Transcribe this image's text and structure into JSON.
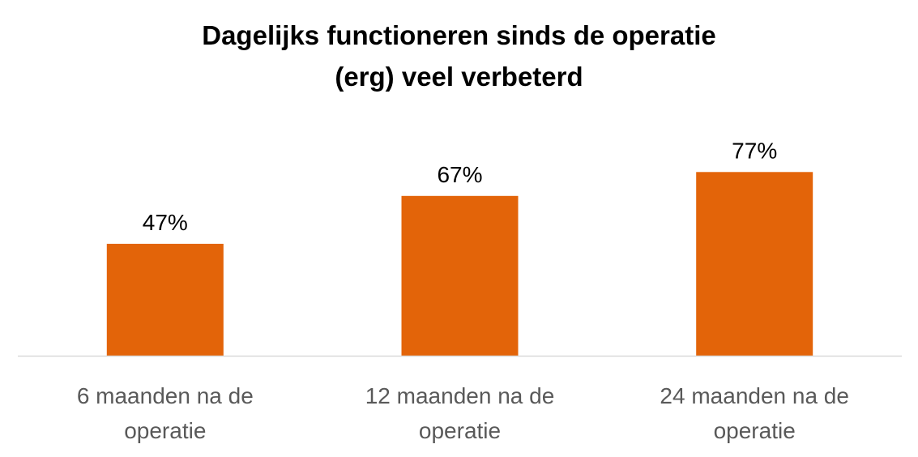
{
  "chart_data": {
    "type": "bar",
    "title": "Dagelijks functioneren sinds de operatie (erg) veel verbeterd",
    "title_lines": [
      "Dagelijks functioneren sinds de operatie",
      "(erg) veel verbeterd"
    ],
    "categories": [
      "6 maanden na de operatie",
      "12 maanden na de operatie",
      "24 maanden na de operatie"
    ],
    "category_lines": [
      [
        "6 maanden na de",
        "operatie"
      ],
      [
        "12 maanden na de",
        "operatie"
      ],
      [
        "24 maanden na de",
        "operatie"
      ]
    ],
    "values": [
      47,
      67,
      77
    ],
    "value_labels": [
      "47%",
      "67%",
      "77%"
    ],
    "ylim": [
      0,
      100
    ],
    "xlabel": "",
    "ylabel": "",
    "grid": false,
    "legend": "none",
    "bar_color": "#E36409",
    "axis_color": "#D9D9D9",
    "label_color": "#000000",
    "category_label_color": "#595959"
  }
}
